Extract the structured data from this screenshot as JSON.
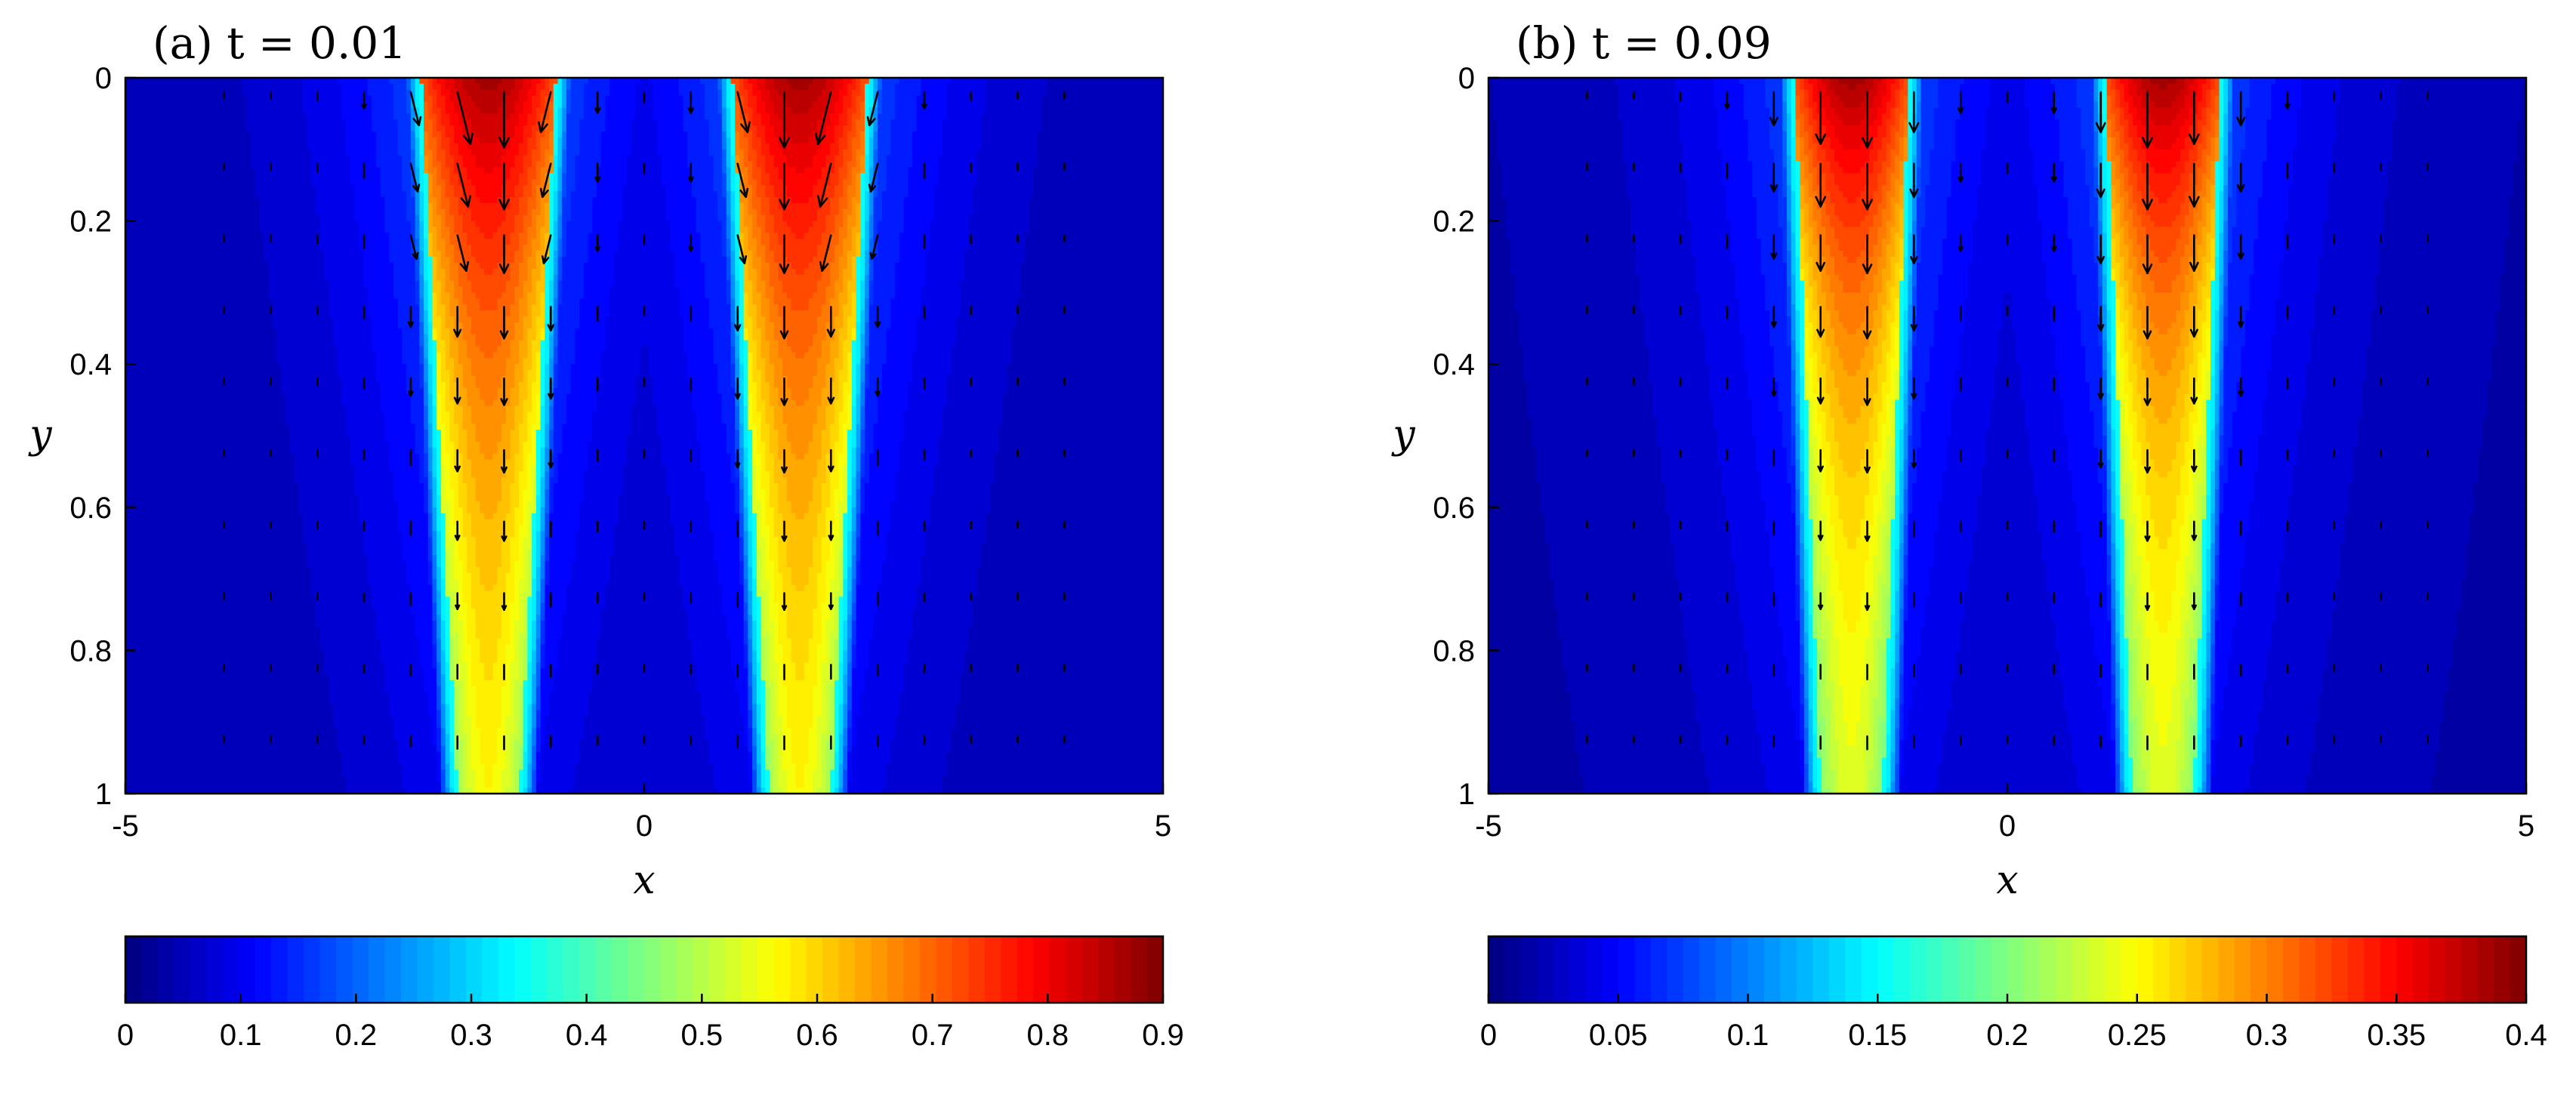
{
  "chart_data": [
    {
      "type": "heatmap",
      "title": "(a) t = 0.01",
      "xlabel": "x",
      "ylabel": "y",
      "xlim": [
        -5,
        5
      ],
      "ylim": [
        0,
        1
      ],
      "y_axis_reversed": true,
      "xticks": [
        "-5",
        "0",
        "5"
      ],
      "yticks": [
        "0",
        "0.2",
        "0.4",
        "0.6",
        "0.8",
        "1"
      ],
      "colormap": "jet",
      "colorbar": {
        "min": 0,
        "max": 0.9,
        "ticks": [
          "0",
          "0.1",
          "0.2",
          "0.3",
          "0.4",
          "0.5",
          "0.6",
          "0.7",
          "0.8",
          "0.9"
        ]
      },
      "field": {
        "peaks_x": [
          -1.5,
          1.5
        ],
        "peak_value": 0.9,
        "core_halfwidth_top": 0.65,
        "core_halfwidth_bottom": 0.3,
        "edge_halfwidth": 0.25,
        "red_depth": 0.32,
        "background": 0.02
      },
      "quiver": {
        "present": true,
        "vertical_flow": true,
        "converging_arrows_near_y": 0.2
      }
    },
    {
      "type": "heatmap",
      "title": "(b) t = 0.09",
      "xlabel": "x",
      "ylabel": "y",
      "xlim": [
        -5,
        5
      ],
      "ylim": [
        0,
        1
      ],
      "y_axis_reversed": true,
      "xticks": [
        "-5",
        "0",
        "5"
      ],
      "yticks": [
        "0",
        "0.2",
        "0.4",
        "0.6",
        "0.8",
        "1"
      ],
      "colormap": "jet",
      "colorbar": {
        "min": 0,
        "max": 0.4,
        "ticks": [
          "0",
          "0.05",
          "0.1",
          "0.15",
          "0.2",
          "0.25",
          "0.3",
          "0.35",
          "0.4"
        ]
      },
      "field": {
        "peaks_x": [
          -1.5,
          1.5
        ],
        "peak_value": 0.4,
        "core_halfwidth_top": 0.55,
        "core_halfwidth_bottom": 0.3,
        "edge_halfwidth": 0.25,
        "red_depth": 0.25,
        "background": 0.01
      },
      "quiver": {
        "present": true,
        "vertical_flow": true,
        "converging_arrows_near_y": 0
      }
    }
  ]
}
